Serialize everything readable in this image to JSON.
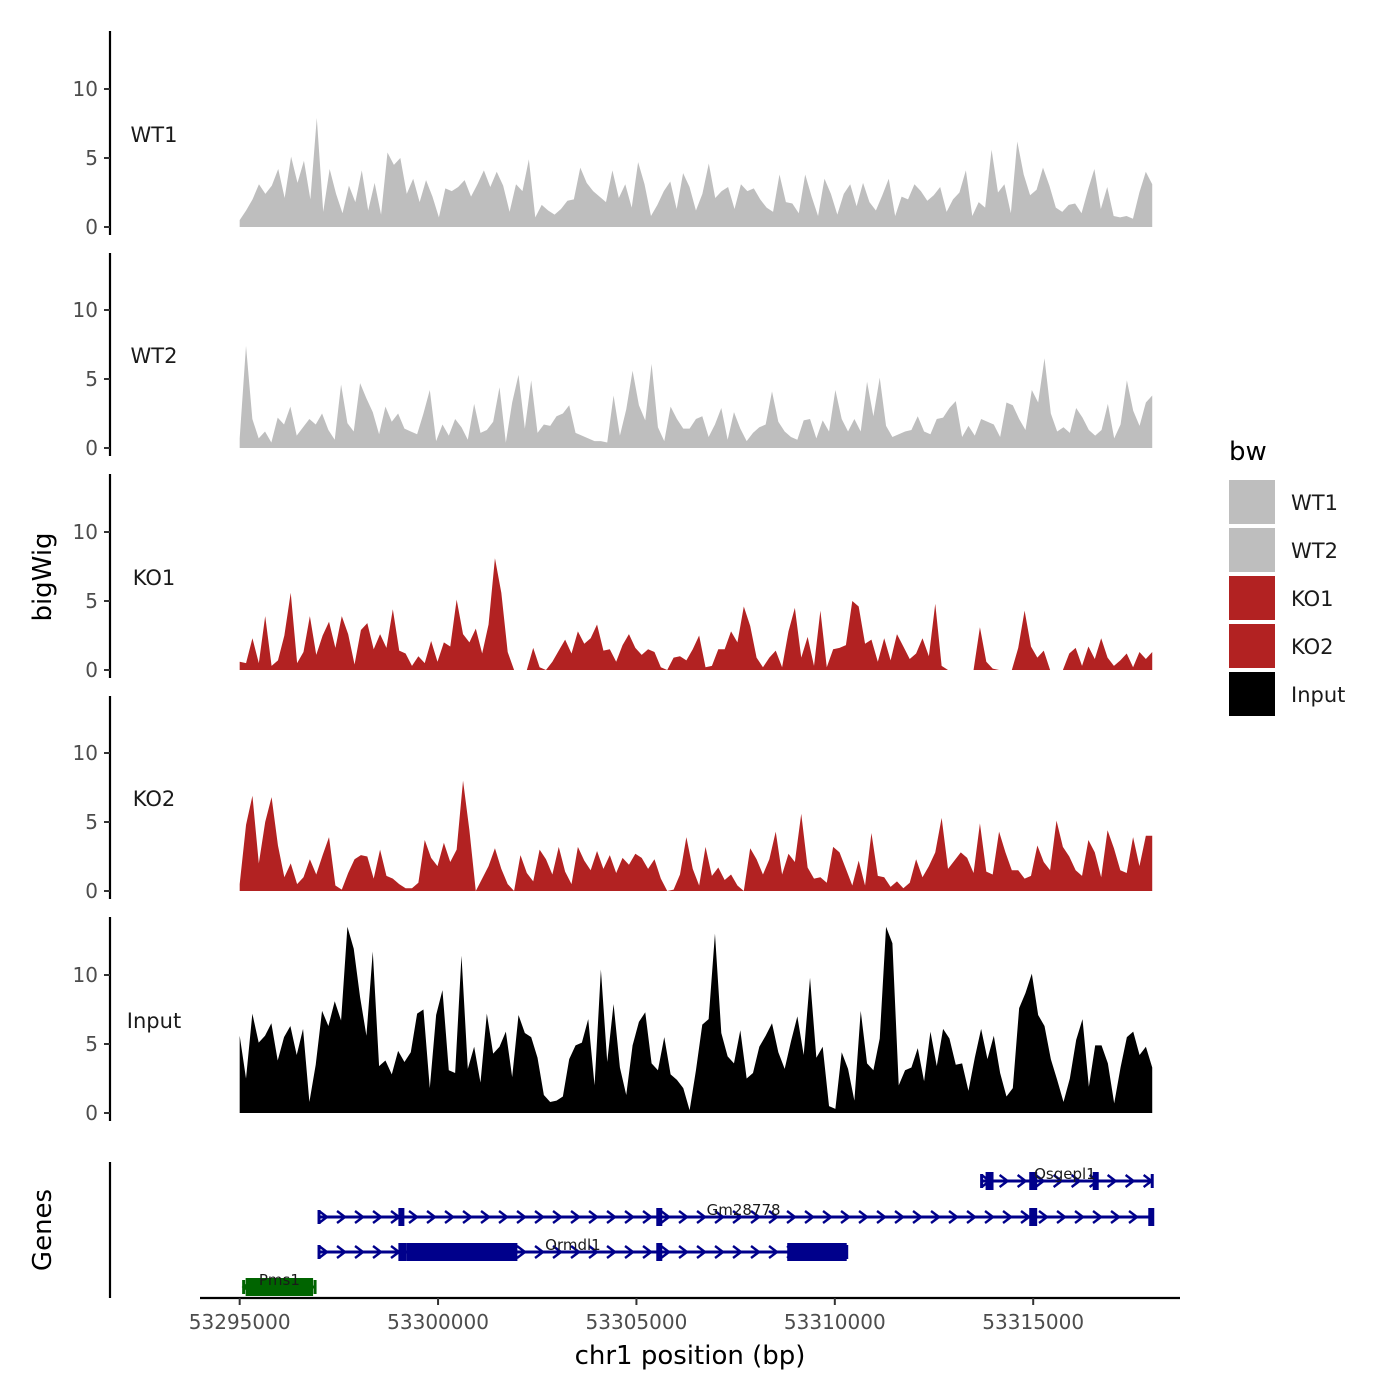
{
  "chart_data": {
    "type": "area",
    "region": {
      "chrom": "chr1",
      "start": 53295000,
      "end": 53318000
    },
    "xlabel": "chr1 position (bp)",
    "ylabel": "bigWig",
    "genes_ylabel": "Genes",
    "xlim": [
      53294000,
      53318700
    ],
    "x_ticks": [
      53295000,
      53300000,
      53305000,
      53310000,
      53315000
    ],
    "x_tick_labels": [
      "53295000",
      "53300000",
      "53305000",
      "53310000",
      "53315000"
    ],
    "ylim": [
      0,
      14
    ],
    "y_ticks": [
      0,
      5,
      10
    ],
    "y_tick_labels": [
      "0",
      "5",
      "10"
    ],
    "legend": {
      "title": "bw",
      "entries": [
        {
          "label": "WT1",
          "color": "#bebebe"
        },
        {
          "label": "WT2",
          "color": "#bebebe"
        },
        {
          "label": "KO1",
          "color": "#b22222"
        },
        {
          "label": "KO2",
          "color": "#b22222"
        },
        {
          "label": "Input",
          "color": "#000000"
        }
      ]
    },
    "series": [
      {
        "name": "WT1",
        "color": "#bebebe",
        "values": [
          0.5,
          1.2,
          2,
          3.1,
          2.4,
          3,
          4.2,
          2.1,
          5.1,
          3.2,
          4.8,
          2,
          7.9,
          1.1,
          4.2,
          2.4,
          1,
          3,
          1.8,
          4.1,
          1.2,
          3.2,
          0.9,
          5.4,
          4.5,
          5,
          2.4,
          3.5,
          1.8,
          3.4,
          2.2,
          0.7,
          2.8,
          2.6,
          2.9,
          3.4,
          2.2,
          3.1,
          4.1,
          2.9,
          4,
          3,
          1.1,
          3.1,
          2.6,
          4.9,
          0.7,
          1.6,
          1.2,
          0.9,
          1.3,
          1.9,
          2,
          4.3,
          3.2,
          2.6,
          2.2,
          1.8,
          4.1,
          2.1,
          3.1,
          1.4,
          4.7,
          3.1,
          0.8,
          1.6,
          2.6,
          3.3,
          1.3,
          3.9,
          2.9,
          1.2,
          2.4,
          4.6,
          2.1,
          2.6,
          2.9,
          1.3,
          3.1,
          2.6,
          2.8,
          2,
          1.4,
          1.1,
          3.8,
          1.8,
          1.7,
          1,
          3.8,
          2.2,
          0.8,
          3.5,
          2.4,
          0.9,
          2.4,
          3.1,
          1.5,
          3.2,
          1.8,
          1.2,
          2.3,
          3.5,
          0.8,
          2.2,
          2,
          3.1,
          2.6,
          1.9,
          2.3,
          2.9,
          1.1,
          2,
          2.5,
          4.1,
          0.8,
          1.8,
          1.4,
          5.6,
          2.5,
          3.1,
          1,
          6.2,
          3.8,
          2.3,
          2.7,
          4.3,
          3,
          1.4,
          1.1,
          1.6,
          1.7,
          1,
          2.7,
          4.2,
          1.3,
          2.9,
          0.8,
          0.7,
          0.8,
          0.6,
          2.5,
          4,
          3.1
        ]
      },
      {
        "name": "WT2",
        "color": "#bebebe",
        "values": [
          0.7,
          7.4,
          2.1,
          0.7,
          1.2,
          0.4,
          2.2,
          1.7,
          3,
          0.9,
          1.5,
          2.1,
          1.7,
          2.5,
          1.3,
          0.6,
          4.6,
          1.8,
          1.2,
          4.7,
          3.6,
          2.6,
          1,
          3,
          1.9,
          2.5,
          1.4,
          1.2,
          1,
          2.5,
          4.2,
          0.5,
          1.7,
          0.9,
          2.1,
          1.5,
          0.6,
          3.2,
          1.1,
          1.3,
          1.9,
          4.4,
          0.4,
          3.3,
          5.3,
          1.4,
          4.9,
          1.1,
          1.7,
          1.6,
          2.3,
          2.5,
          3.1,
          1.1,
          0.9,
          0.7,
          0.5,
          0.5,
          0.4,
          3.8,
          0.9,
          2.8,
          5.6,
          3.1,
          2,
          6.1,
          1.5,
          0.5,
          3,
          2.1,
          1.4,
          1.4,
          2.1,
          2.3,
          0.8,
          1.7,
          2.9,
          0.6,
          2.6,
          1.4,
          0.5,
          1.1,
          1.5,
          1.7,
          4.1,
          1.9,
          1.2,
          0.8,
          0.6,
          2,
          2.1,
          0.7,
          2,
          1.2,
          4.2,
          2.1,
          1.2,
          2.1,
          1.2,
          4.8,
          2.3,
          5.1,
          1.6,
          0.8,
          1,
          1.2,
          1.3,
          2.3,
          1.2,
          1,
          2.1,
          2.2,
          2.9,
          3.4,
          0.8,
          1.6,
          0.9,
          2.1,
          1.9,
          1.7,
          0.8,
          3.3,
          3.1,
          2.1,
          1.3,
          4.2,
          3.3,
          6.5,
          2.5,
          1.2,
          1.5,
          1.1,
          2.9,
          2.2,
          1.3,
          0.9,
          1.3,
          3.2,
          0.7,
          1.7,
          4.9,
          2.7,
          1.6,
          3.3,
          3.8
        ]
      },
      {
        "name": "KO1",
        "color": "#b22222",
        "values": [
          0.6,
          0.5,
          2.3,
          0.5,
          3.9,
          0.3,
          0.7,
          2.5,
          5.6,
          0.5,
          1.3,
          3.9,
          1.1,
          2.5,
          3.5,
          1.6,
          3.9,
          2.6,
          0.4,
          2.9,
          3.4,
          1.5,
          2.6,
          1.6,
          4.4,
          1.4,
          1.2,
          0.3,
          1,
          0.5,
          2.1,
          0.6,
          2,
          1.7,
          5.1,
          2.6,
          2,
          3,
          1.2,
          3.3,
          8.1,
          5.6,
          1.3,
          0,
          0,
          0,
          1.6,
          0.2,
          0,
          0.6,
          1.4,
          2.2,
          1.2,
          2.8,
          1.9,
          2.3,
          3.3,
          1.4,
          1.5,
          0.6,
          1.8,
          2.6,
          1.6,
          1.1,
          1.5,
          1.3,
          0.2,
          0,
          0.9,
          1,
          0.7,
          1.5,
          2.5,
          0.2,
          0.3,
          1.5,
          1.5,
          2.8,
          2,
          4.6,
          3.2,
          0.9,
          0.2,
          0.9,
          1.4,
          0.2,
          2.8,
          4.5,
          0.9,
          2.4,
          0.3,
          4.3,
          0.2,
          1.5,
          1.6,
          1.8,
          5,
          4.6,
          1.9,
          2.2,
          0.6,
          2.3,
          0.7,
          2.6,
          1.7,
          0.8,
          1.2,
          2.3,
          1,
          4.8,
          0.3,
          0,
          0,
          0,
          0,
          0,
          3.1,
          0.6,
          0.1,
          0,
          0,
          0,
          1.6,
          4.3,
          1.7,
          0.9,
          1.4,
          0,
          0,
          0,
          1.2,
          1.6,
          0.3,
          1.7,
          0.8,
          2.3,
          0.9,
          0.3,
          0.7,
          1.2,
          0.2,
          1.3,
          0.8,
          1.3
        ]
      },
      {
        "name": "KO2",
        "color": "#b22222",
        "values": [
          0.5,
          4.8,
          6.9,
          2,
          5,
          6.8,
          3.3,
          1,
          2,
          0.5,
          1,
          2.3,
          1.2,
          2.6,
          3.9,
          0.4,
          0.1,
          1.3,
          2.3,
          2.6,
          2.5,
          0.9,
          3,
          1.1,
          0.9,
          0.5,
          0.2,
          0.2,
          0.6,
          3.7,
          2.4,
          1.8,
          3.5,
          2.1,
          3,
          8,
          4.4,
          0,
          0.9,
          1.8,
          3.1,
          1.6,
          0.5,
          0,
          2.6,
          1.3,
          0.7,
          3,
          2.3,
          1.2,
          3.2,
          1.4,
          0.5,
          3.2,
          2.2,
          1.5,
          2.9,
          1.6,
          2.6,
          1.3,
          2.4,
          1.9,
          2.7,
          2.4,
          1.6,
          2.3,
          0.9,
          0,
          0.1,
          1.2,
          3.9,
          1.6,
          0.4,
          3.2,
          1.1,
          1.7,
          0.8,
          1.2,
          0.4,
          0,
          3.1,
          2.3,
          1.2,
          2.3,
          4.3,
          1.2,
          2.7,
          2.1,
          5.6,
          1.7,
          0.9,
          1,
          0.6,
          3.2,
          2.8,
          1.6,
          0.4,
          2.2,
          0.4,
          4.2,
          1.1,
          1,
          0.3,
          0.7,
          0.2,
          0.6,
          2.3,
          1,
          1.8,
          2.8,
          5.3,
          1.6,
          2.2,
          2.8,
          2.4,
          1.3,
          4.9,
          1.4,
          1.2,
          4.3,
          2.8,
          1.5,
          1.5,
          0.9,
          1.1,
          3.3,
          2.1,
          1.5,
          5.1,
          3.2,
          2.5,
          1.5,
          1.1,
          3.7,
          2.8,
          1,
          4.4,
          3.1,
          1.5,
          1.3,
          3.9,
          1.8,
          4,
          4
        ]
      },
      {
        "name": "Input",
        "color": "#000000",
        "values": [
          5.6,
          2.5,
          7.2,
          5.1,
          5.6,
          6.5,
          3.8,
          5.5,
          6.3,
          4.2,
          6.1,
          0.8,
          3.5,
          7.4,
          6.3,
          8.1,
          6.7,
          13.5,
          11.9,
          8.4,
          5.6,
          11.7,
          3.4,
          3.8,
          2.8,
          4.5,
          3.7,
          4.4,
          7.2,
          7.5,
          1.8,
          7.1,
          8.9,
          3.1,
          2.9,
          11.4,
          3.2,
          4.8,
          2.2,
          7.2,
          4.3,
          4.8,
          5.9,
          2.6,
          7.1,
          5.8,
          5.5,
          4,
          1.3,
          0.8,
          0.9,
          1.2,
          3.9,
          4.9,
          5.1,
          6.8,
          2,
          10.4,
          3.7,
          7.9,
          3.3,
          1.3,
          4.9,
          6.6,
          7.3,
          3.6,
          3.1,
          5.5,
          2.8,
          2.4,
          1.8,
          0.2,
          3.1,
          6.4,
          6.8,
          13,
          5.8,
          4.1,
          3.6,
          6,
          2.5,
          2.9,
          4.8,
          5.6,
          6.5,
          4.4,
          3.2,
          5.2,
          7,
          4.2,
          9.8,
          4,
          4.8,
          0.5,
          0.3,
          4.4,
          3.2,
          0.9,
          7.4,
          3.6,
          3.1,
          5.4,
          13.5,
          12.3,
          2,
          3.1,
          3.3,
          4.7,
          2.3,
          5.9,
          3.4,
          6.1,
          5.4,
          3.5,
          3.6,
          1.6,
          4,
          6.1,
          3.9,
          5.6,
          2.9,
          1.2,
          1.8,
          7.6,
          8.7,
          10.1,
          7.1,
          6.3,
          3.9,
          2.4,
          0.8,
          2.5,
          5.3,
          6.8,
          1.9,
          4.9,
          4.9,
          3.6,
          0.7,
          3.3,
          5.5,
          5.9,
          4.2,
          4.8,
          3.3
        ]
      }
    ],
    "genes": [
      {
        "name": "Pms1",
        "strand": "-",
        "color": "#006400",
        "row": 0,
        "start": 53295100,
        "end": 53296900,
        "exons": [
          [
            53295150,
            53296850
          ]
        ]
      },
      {
        "name": "Ormdl1",
        "strand": "+",
        "color": "#00008b",
        "row": 1,
        "start": 53297000,
        "end": 53310300,
        "exons": [
          [
            53299000,
            53299200
          ],
          [
            53299200,
            53302000
          ],
          [
            53305500,
            53305600
          ],
          [
            53308800,
            53310300
          ]
        ]
      },
      {
        "name": "Gm28778",
        "strand": "+",
        "color": "#00008b",
        "row": 2,
        "start": 53297000,
        "end": 53318000,
        "exons": [
          [
            53299000,
            53299150
          ],
          [
            53305500,
            53305600
          ],
          [
            53314900,
            53315100
          ],
          [
            53317900,
            53318000
          ]
        ]
      },
      {
        "name": "Osgepl1",
        "strand": "+",
        "color": "#00008b",
        "row": 3,
        "start": 53313700,
        "end": 53318000,
        "exons": [
          [
            53313800,
            53314000
          ],
          [
            53314900,
            53315100
          ],
          [
            53316500,
            53316600
          ]
        ]
      }
    ]
  }
}
